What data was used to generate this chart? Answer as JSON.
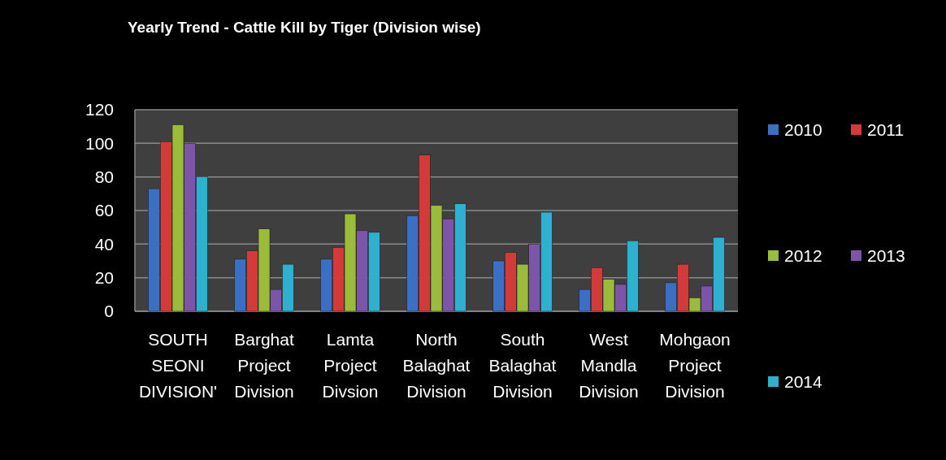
{
  "chart_data": {
    "type": "bar",
    "title": "Yearly Trend - Cattle Kill by Tiger (Division wise)",
    "categories": [
      "SOUTH SEONI DIVISION'",
      "Barghat Project Division",
      "Lamta Project Divsion",
      "North Balaghat Division",
      "South Balaghat Division",
      "West Mandla Division",
      "Mohgaon Project Division"
    ],
    "series": [
      {
        "name": "2010",
        "color": "#3a6fc4",
        "values": [
          73,
          31,
          31,
          57,
          30,
          13,
          17
        ]
      },
      {
        "name": "2011",
        "color": "#d33a3a",
        "values": [
          101,
          36,
          38,
          93,
          35,
          26,
          28
        ]
      },
      {
        "name": "2012",
        "color": "#9bbb3a",
        "values": [
          111,
          49,
          58,
          63,
          28,
          19,
          8
        ]
      },
      {
        "name": "2013",
        "color": "#7d55a8",
        "values": [
          100,
          13,
          48,
          55,
          40,
          16,
          15
        ]
      },
      {
        "name": "2014",
        "color": "#2eb0cf",
        "values": [
          80,
          28,
          47,
          64,
          59,
          42,
          44
        ]
      }
    ],
    "ylim": [
      0,
      120
    ],
    "yticks": [
      0,
      20,
      40,
      60,
      80,
      100,
      120
    ],
    "grid": "y",
    "legend": "right"
  }
}
